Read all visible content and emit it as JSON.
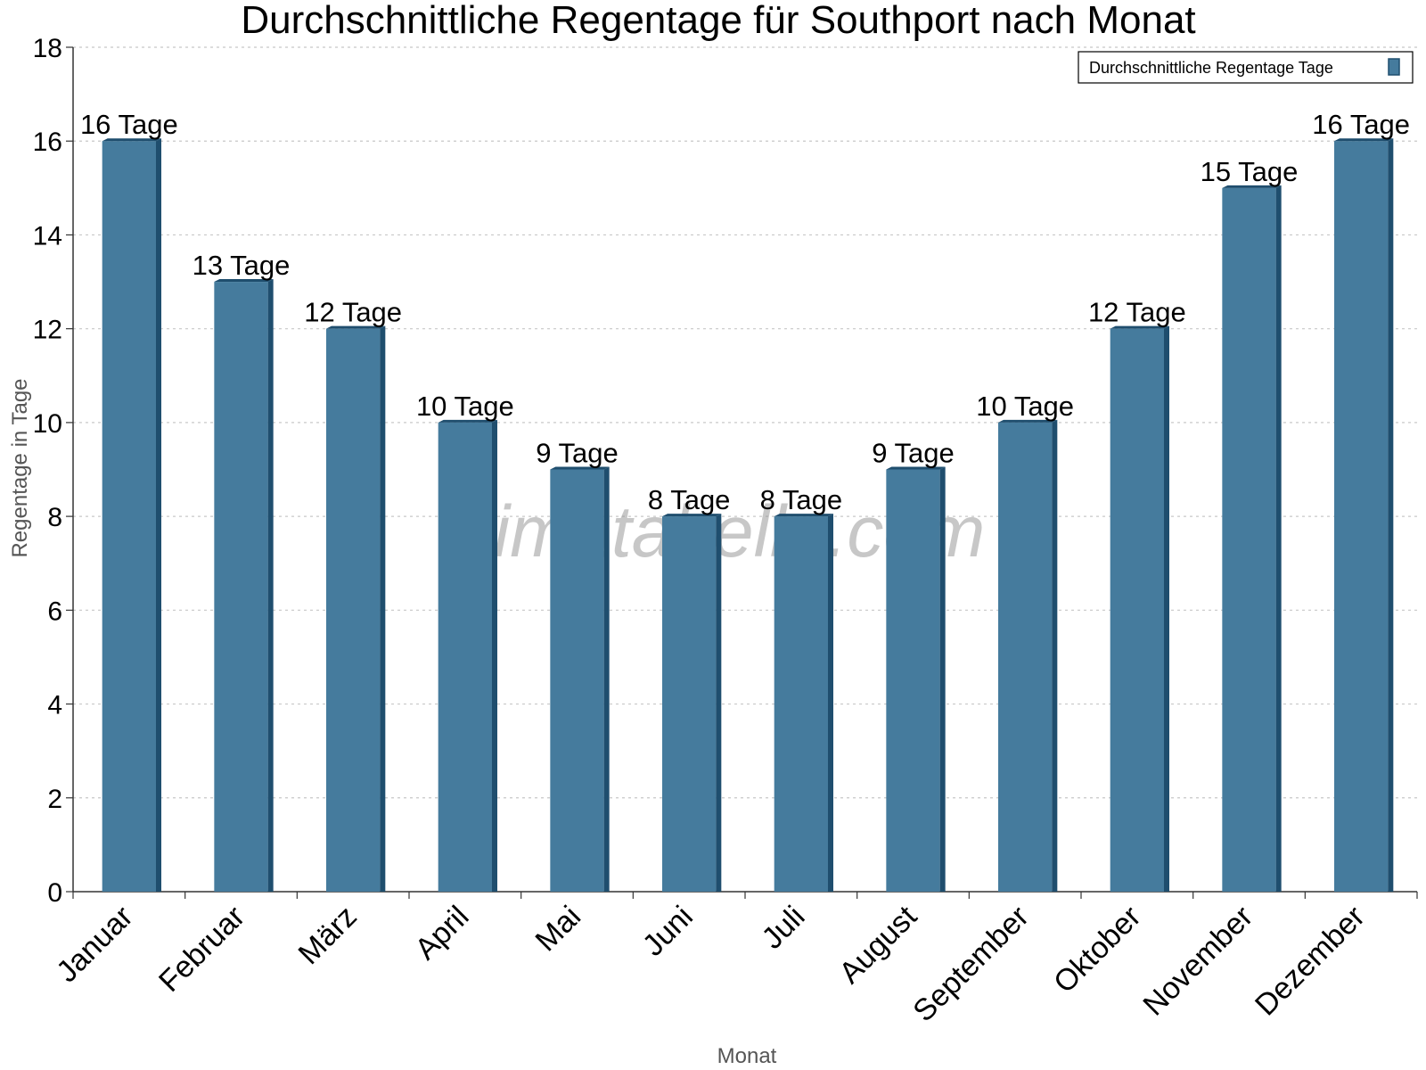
{
  "chart_data": {
    "type": "bar",
    "title": "Durchschnittliche Regentage für Southport nach Monat",
    "xlabel": "Monat",
    "ylabel": "Regentage in Tage",
    "ylim": [
      0,
      18
    ],
    "yticks": [
      0,
      2,
      4,
      6,
      8,
      10,
      12,
      14,
      16,
      18
    ],
    "grid": true,
    "legend_position": "top-right",
    "categories": [
      "Januar",
      "Februar",
      "März",
      "April",
      "Mai",
      "Juni",
      "Juli",
      "August",
      "September",
      "Oktober",
      "November",
      "Dezember"
    ],
    "series": [
      {
        "name": "Durchschnittliche Regentage Tage",
        "values": [
          16,
          13,
          12,
          10,
          9,
          8,
          8,
          9,
          10,
          12,
          15,
          16
        ],
        "data_labels": [
          "16 Tage",
          "13 Tage",
          "12 Tage",
          "10 Tage",
          "9 Tage",
          "8 Tage",
          "8 Tage",
          "9 Tage",
          "10 Tage",
          "12 Tage",
          "15 Tage",
          "16 Tage"
        ]
      }
    ],
    "colors": {
      "bar": "#457b9d",
      "bar_dark": "#1f4e6e",
      "grid": "#c8c8c8",
      "axis": "#333333"
    }
  },
  "watermark": "klimatabelle.com"
}
